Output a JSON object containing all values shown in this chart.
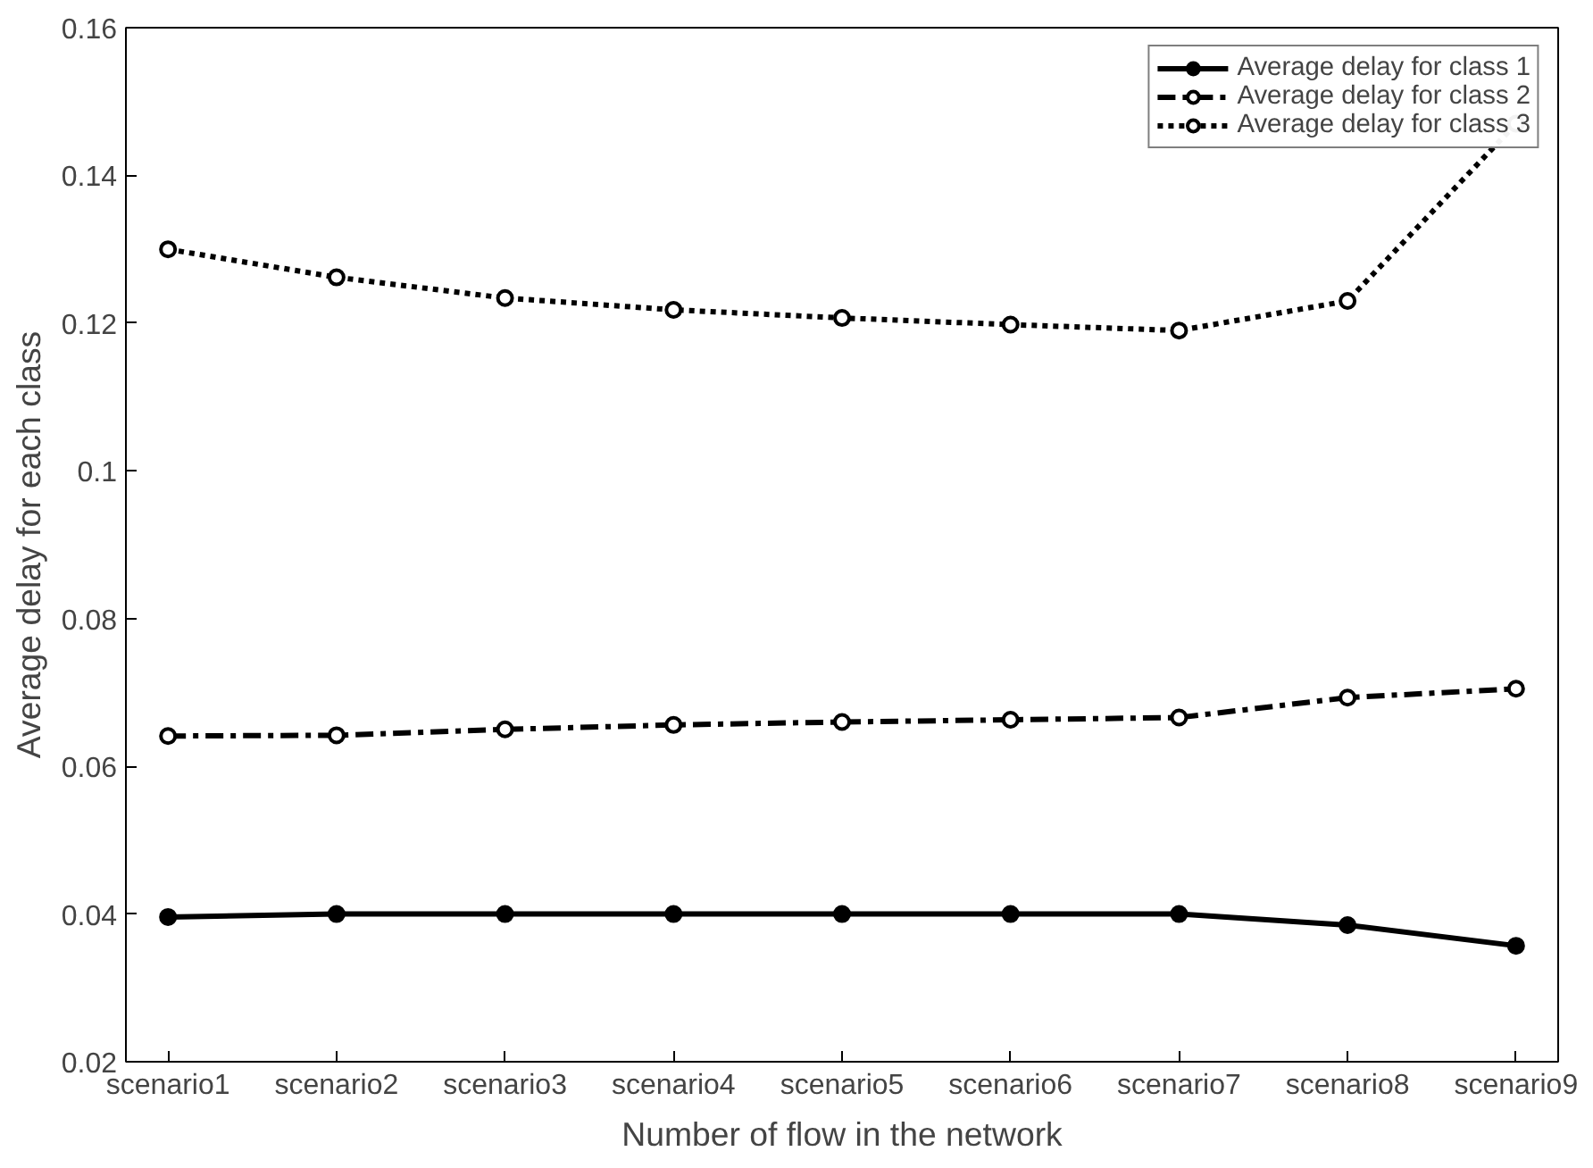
{
  "chart_data": {
    "type": "line",
    "xlabel": "Number of flow in the network",
    "ylabel": "Average delay for each class",
    "categories": [
      "scenario1",
      "scenario2",
      "scenario3",
      "scenario4",
      "scenario5",
      "scenario6",
      "scenario7",
      "scenario8",
      "scenario9"
    ],
    "ylim": [
      0.02,
      0.16
    ],
    "yticks": [
      0.02,
      0.04,
      0.06,
      {
        "value": 0.08,
        "label": "0.08"
      },
      {
        "value": 0.1,
        "label": "0.1"
      },
      0.12,
      0.14,
      0.16
    ],
    "grid": false,
    "legend": "top right",
    "marker": "circle",
    "series": [
      {
        "name": "Average delay for class 1",
        "color": "#000000",
        "line_style": "solid",
        "values": [
          0.0396,
          0.04,
          0.04,
          0.04,
          0.04,
          0.04,
          0.04,
          0.0385,
          0.0357
        ]
      },
      {
        "name": "Average delay for class 2",
        "color": "#000000",
        "line_style": "dashed",
        "values": [
          0.0641,
          0.0642,
          0.065,
          0.0656,
          0.066,
          0.0663,
          0.0666,
          0.0693,
          0.0705
        ]
      },
      {
        "name": "Average delay for class 3",
        "color": "#000000",
        "line_style": "dotted",
        "values": [
          0.13,
          0.1262,
          0.1234,
          0.1218,
          0.1207,
          0.1198,
          0.119,
          0.123,
          0.147
        ]
      }
    ]
  }
}
